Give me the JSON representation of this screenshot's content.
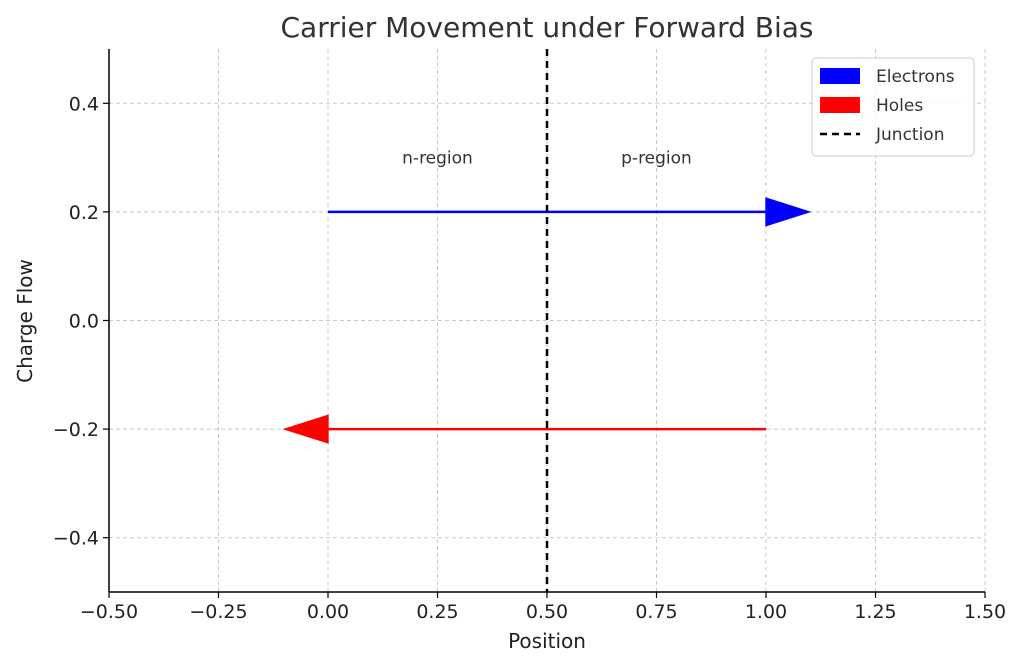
{
  "chart_data": {
    "type": "line",
    "title": "Carrier Movement under Forward Bias",
    "xlabel": "Position",
    "ylabel": "Charge Flow",
    "xlim": [
      -0.5,
      1.5
    ],
    "ylim": [
      -0.5,
      0.5
    ],
    "xticks": [
      -0.5,
      -0.25,
      0.0,
      0.25,
      0.5,
      0.75,
      1.0,
      1.25,
      1.5
    ],
    "xtick_labels": [
      "−0.50",
      "−0.25",
      "0.00",
      "0.25",
      "0.50",
      "0.75",
      "1.00",
      "1.25",
      "1.50"
    ],
    "yticks": [
      -0.4,
      -0.2,
      0.0,
      0.2,
      0.4
    ],
    "ytick_labels": [
      "−0.4",
      "−0.2",
      "0.0",
      "0.2",
      "0.4"
    ],
    "grid": true,
    "legend_position": "top-right",
    "series": [
      {
        "name": "Electrons",
        "kind": "arrow",
        "color": "#0000ff",
        "x_start": 0.0,
        "x_end": 1.1,
        "y": 0.2
      },
      {
        "name": "Holes",
        "kind": "arrow",
        "color": "#ff0000",
        "x_start": 1.0,
        "x_end": -0.1,
        "y": -0.2
      },
      {
        "name": "Junction",
        "kind": "vline",
        "color": "#000000",
        "x": 0.5,
        "style": "dashed"
      }
    ],
    "annotations": [
      {
        "text": "n-region",
        "x": 0.25,
        "y": 0.3
      },
      {
        "text": "p-region",
        "x": 0.75,
        "y": 0.3
      }
    ]
  }
}
